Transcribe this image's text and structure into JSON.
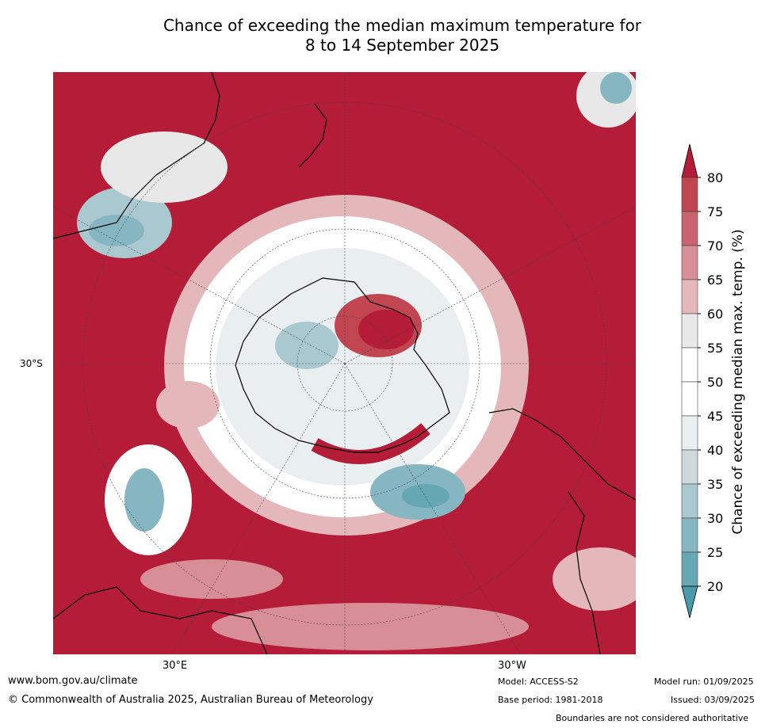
{
  "title": {
    "line1": "Chance of exceeding the median maximum temperature for",
    "line2": "8 to 14 September 2025"
  },
  "axes": {
    "lat_label": "30°S",
    "lon_labels": [
      "30°E",
      "30°W"
    ]
  },
  "colorbar": {
    "title": "Chance of exceeding median max. temp. (%)",
    "ticks": [
      "80",
      "75",
      "70",
      "65",
      "60",
      "55",
      "50",
      "45",
      "40",
      "35",
      "30",
      "25",
      "20"
    ],
    "colors": {
      "above_80": "#b41c37",
      "75_80": "#c24552",
      "70_75": "#c9636d",
      "65_70": "#d78e96",
      "60_65": "#e4b7bb",
      "55_60": "#e8e8e8",
      "50_55": "#ffffff",
      "45_50": "#ffffff",
      "40_45": "#e9eff1",
      "35_40": "#cfd9dc",
      "30_35": "#aac8cf",
      "25_30": "#86b6c1",
      "20_25": "#66a7b4",
      "below_20": "#4b9aab"
    }
  },
  "footer": {
    "website": "www.bom.gov.au/climate",
    "copyright": "© Commonwealth of Australia 2025, Australian Bureau of Meteorology",
    "model": "Model: ACCESS-S2",
    "base_period": "Base period: 1981-2018",
    "model_run": "Model run: 01/09/2025",
    "issued": "Issued: 03/09/2025",
    "disclaimer": "Boundaries are not considered authoritative"
  }
}
